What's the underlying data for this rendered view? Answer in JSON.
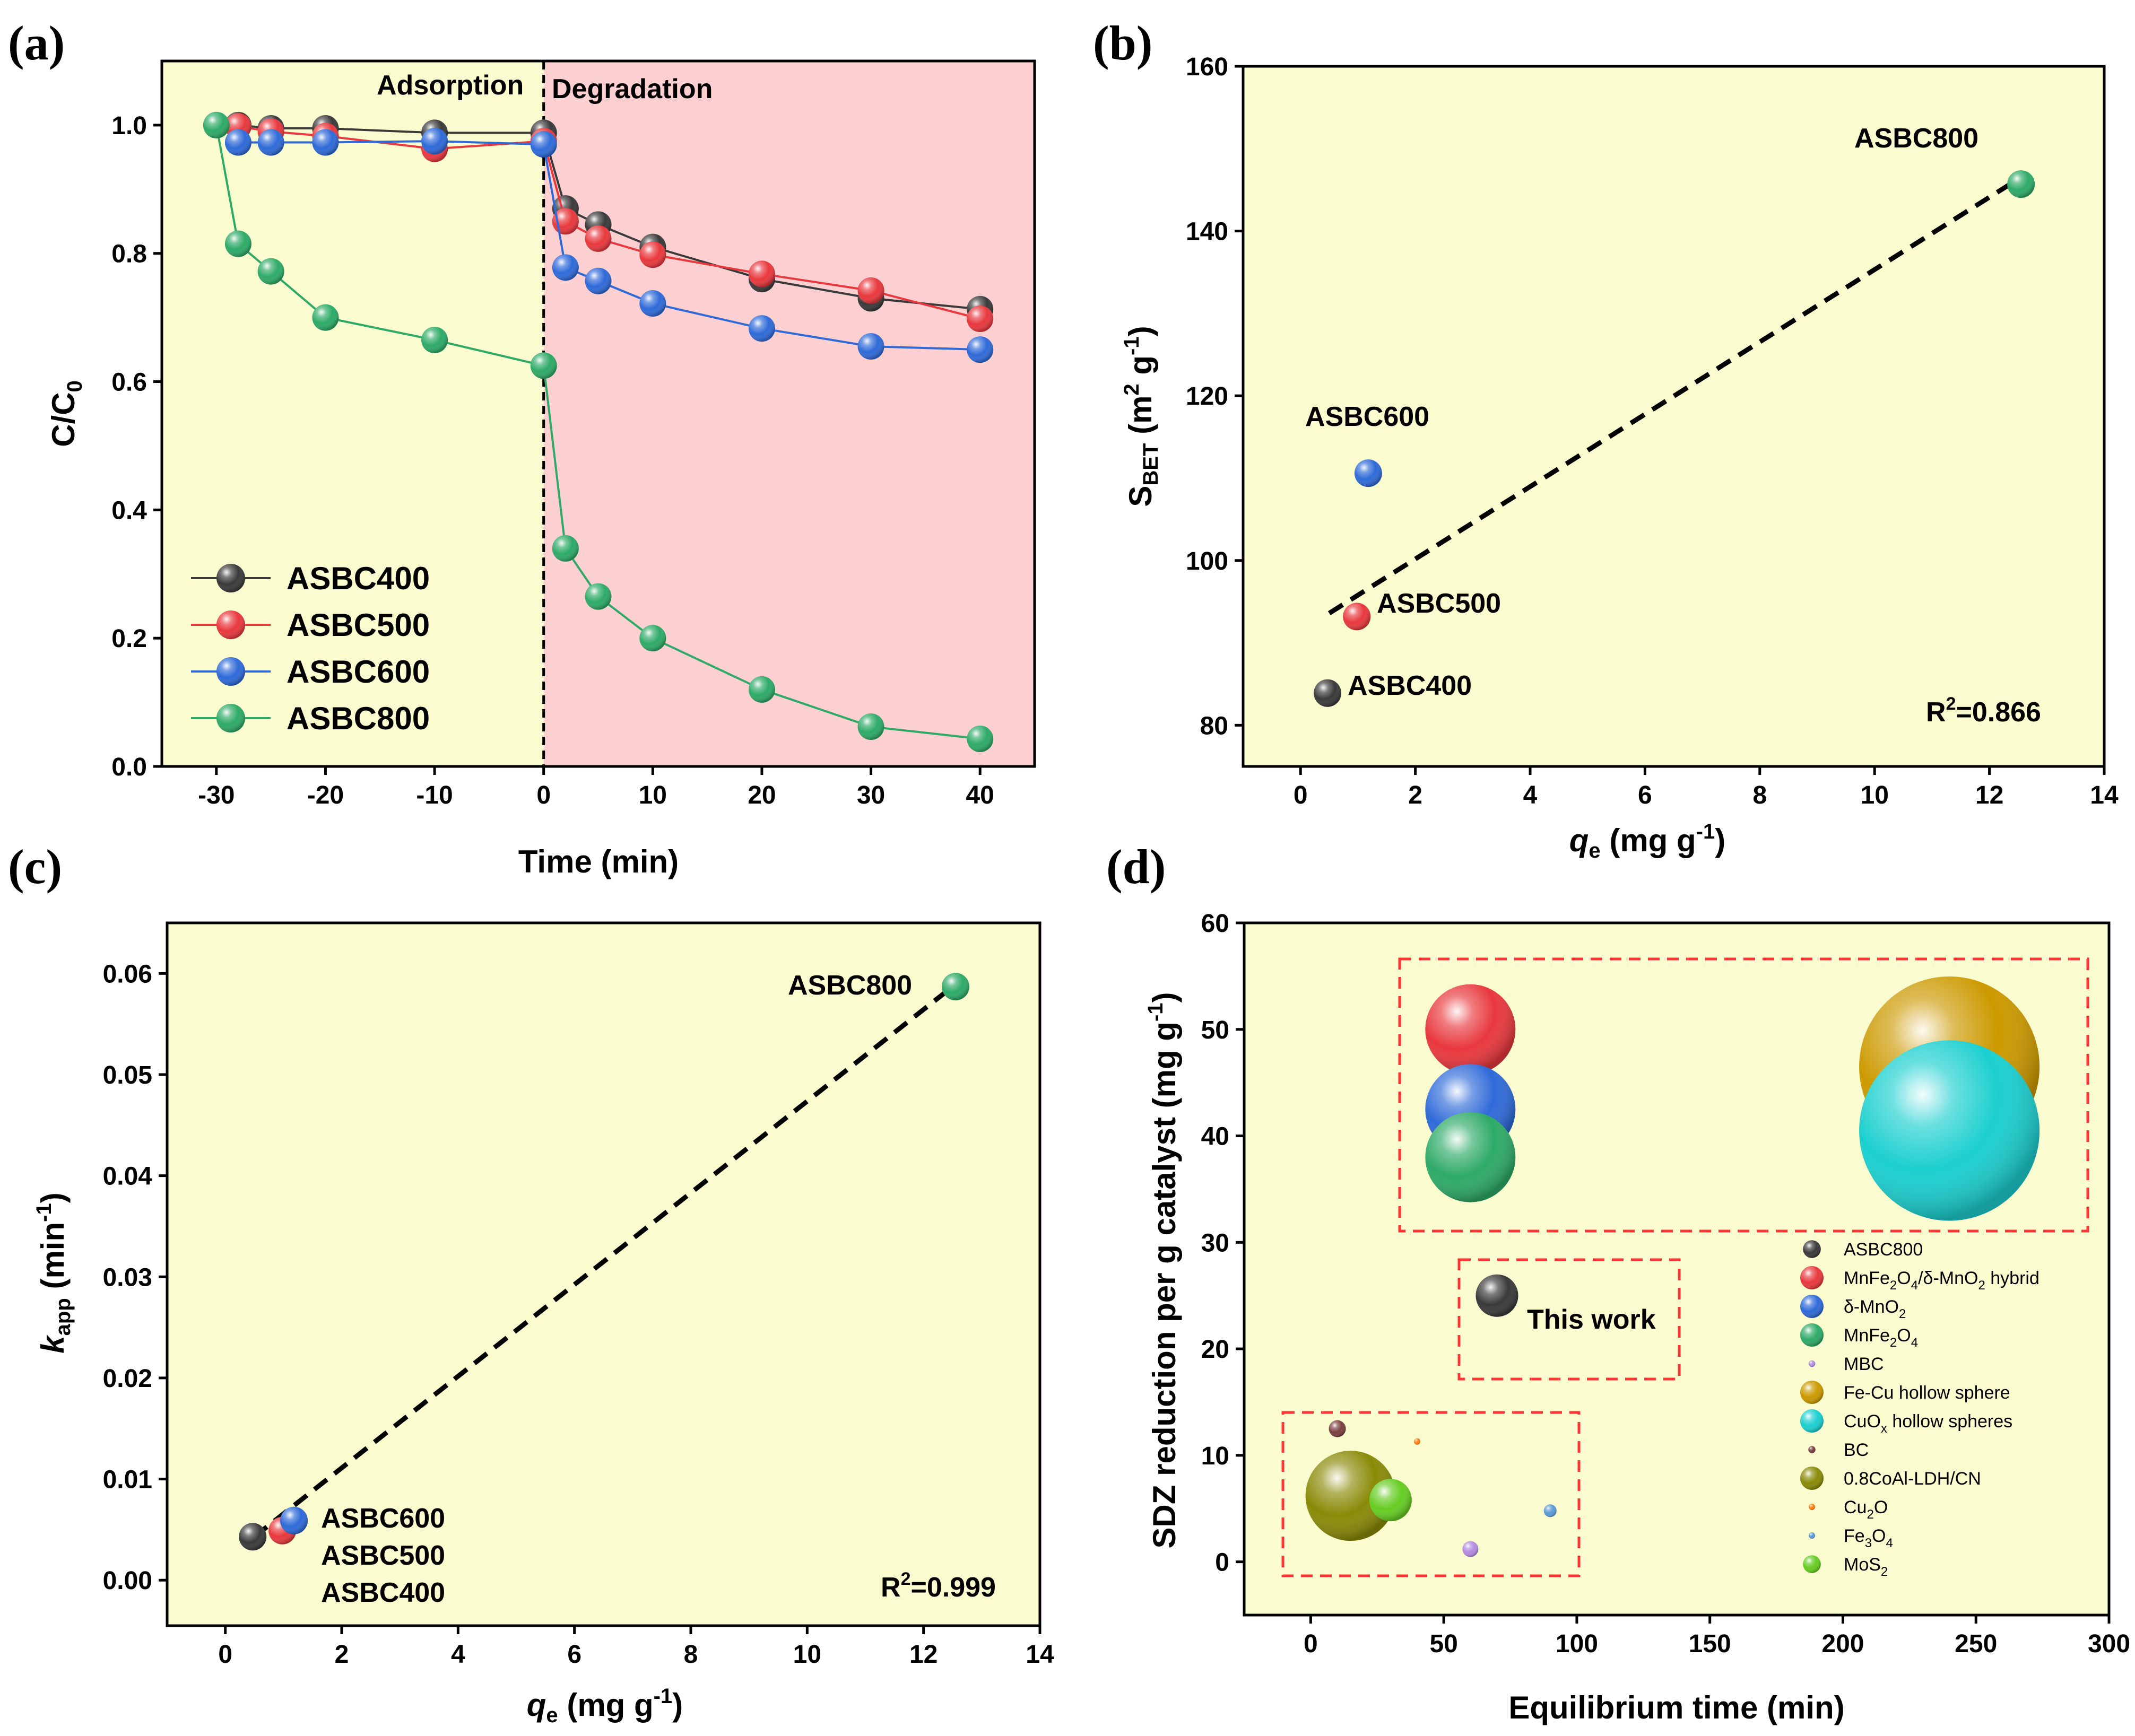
{
  "chart_data": [
    {
      "panel": "(a)",
      "type": "line",
      "xlabel": "Time (min)",
      "ylabel": "C/C",
      "ylabel_sub": "0",
      "xlim": [
        -35,
        45
      ],
      "ylim": [
        0,
        1.1
      ],
      "xticks": [
        -30,
        -20,
        -10,
        0,
        10,
        20,
        30,
        40
      ],
      "yticks": [
        0.0,
        0.2,
        0.4,
        0.6,
        0.8,
        1.0
      ],
      "xtick_labels": [
        "-30",
        "-20",
        "-10",
        "0",
        "10",
        "20",
        "30",
        "40"
      ],
      "ytick_labels": [
        "0.0",
        "0.2",
        "0.4",
        "0.6",
        "0.8",
        "1.0"
      ],
      "regions": [
        {
          "label": "Adsorption",
          "from": -35,
          "to": 0,
          "color": "#fafbcf"
        },
        {
          "label": "Degradation",
          "from": 0,
          "to": 45,
          "color": "#fccfd0"
        }
      ],
      "legend_position": "bottom-left",
      "series": [
        {
          "name": "ASBC400",
          "color": "#3a3a3a",
          "x": [
            -28,
            -25,
            -20,
            -10,
            0,
            2,
            5,
            10,
            20,
            30,
            40
          ],
          "y": [
            1.0,
            0.995,
            0.995,
            0.988,
            0.988,
            0.87,
            0.845,
            0.81,
            0.76,
            0.73,
            0.713
          ]
        },
        {
          "name": "ASBC500",
          "color": "#e8383d",
          "x": [
            -28,
            -25,
            -20,
            -10,
            0,
            2,
            5,
            10,
            20,
            30,
            40
          ],
          "y": [
            0.998,
            0.99,
            0.983,
            0.963,
            0.975,
            0.85,
            0.823,
            0.798,
            0.768,
            0.742,
            0.698
          ]
        },
        {
          "name": "ASBC600",
          "color": "#2f6ad8",
          "x": [
            -28,
            -25,
            -20,
            -10,
            0,
            2,
            5,
            10,
            20,
            30,
            40
          ],
          "y": [
            0.973,
            0.973,
            0.973,
            0.975,
            0.97,
            0.778,
            0.757,
            0.722,
            0.683,
            0.655,
            0.65
          ]
        },
        {
          "name": "ASBC800",
          "color": "#2eaa67",
          "x": [
            -30,
            -28,
            -25,
            -20,
            -10,
            0,
            2,
            5,
            10,
            20,
            30,
            40
          ],
          "y": [
            1.0,
            0.815,
            0.772,
            0.7,
            0.665,
            0.625,
            0.34,
            0.265,
            0.2,
            0.12,
            0.062,
            0.043
          ]
        }
      ]
    },
    {
      "panel": "(b)",
      "type": "scatter",
      "xlabel_var": "q",
      "xlabel_sub": "e",
      "xlabel_unit": " (mg g",
      "xlabel_sup": "-1",
      "xlabel_close": ")",
      "ylabel": "S",
      "ylabel_sub": "BET",
      "ylabel_unit": " (m",
      "ylabel_sup1": "2",
      "ylabel_mid": " g",
      "ylabel_sup2": "-1",
      "ylabel_close": ")",
      "xlim": [
        -1,
        14
      ],
      "ylim": [
        75,
        160
      ],
      "xticks": [
        0,
        2,
        4,
        6,
        8,
        10,
        12,
        14
      ],
      "yticks": [
        80,
        100,
        120,
        140,
        160
      ],
      "xtick_labels": [
        "0",
        "2",
        "4",
        "6",
        "8",
        "10",
        "12",
        "14"
      ],
      "ytick_labels": [
        "80",
        "100",
        "120",
        "140",
        "160"
      ],
      "points": [
        {
          "name": "ASBC400",
          "x": 0.47,
          "y": 83.9,
          "color": "#3a3a3a"
        },
        {
          "name": "ASBC500",
          "x": 0.98,
          "y": 93.2,
          "color": "#e8383d"
        },
        {
          "name": "ASBC600",
          "x": 1.18,
          "y": 110.6,
          "color": "#2f6ad8"
        },
        {
          "name": "ASBC800",
          "x": 12.55,
          "y": 145.7,
          "color": "#2eaa67"
        }
      ],
      "fit_line": {
        "x": [
          0.5,
          12.5
        ],
        "y": [
          93.6,
          146.3
        ]
      },
      "r2_label": "R",
      "r2_sup": "2",
      "r2_value": "=0.866"
    },
    {
      "panel": "(c)",
      "type": "scatter",
      "xlabel_var": "q",
      "xlabel_sub": "e",
      "xlabel_unit": " (mg g",
      "xlabel_sup": "-1",
      "xlabel_close": ")",
      "ylabel_var": "k",
      "ylabel_sub": "app",
      "ylabel_unit": " (min",
      "ylabel_sup": "-1",
      "ylabel_close": ")",
      "xlim": [
        -1,
        14
      ],
      "ylim": [
        -0.0045,
        0.065
      ],
      "xticks": [
        0,
        2,
        4,
        6,
        8,
        10,
        12,
        14
      ],
      "yticks": [
        0.0,
        0.01,
        0.02,
        0.03,
        0.04,
        0.05,
        0.06
      ],
      "xtick_labels": [
        "0",
        "2",
        "4",
        "6",
        "8",
        "10",
        "12",
        "14"
      ],
      "ytick_labels": [
        "0.00",
        "0.01",
        "0.02",
        "0.03",
        "0.04",
        "0.05",
        "0.06"
      ],
      "points": [
        {
          "name": "ASBC400",
          "x": 0.47,
          "y": 0.0043,
          "color": "#3a3a3a"
        },
        {
          "name": "ASBC500",
          "x": 0.98,
          "y": 0.0049,
          "color": "#e8383d"
        },
        {
          "name": "ASBC600",
          "x": 1.18,
          "y": 0.0059,
          "color": "#2f6ad8"
        },
        {
          "name": "ASBC800",
          "x": 12.55,
          "y": 0.0587,
          "color": "#2eaa67"
        }
      ],
      "fit_line": {
        "x": [
          0.5,
          12.5
        ],
        "y": [
          0.0043,
          0.0587
        ]
      },
      "r2_label": "R",
      "r2_sup": "2",
      "r2_value": "=0.999"
    },
    {
      "panel": "(d)",
      "type": "scatter",
      "subtype": "bubble",
      "xlabel": "Equilibrium time (min)",
      "ylabel": "SDZ reduction per g catalyst (mg g",
      "ylabel_sup": "-1",
      "ylabel_close": ")",
      "xlim": [
        -25,
        300
      ],
      "ylim": [
        -5,
        60
      ],
      "xticks": [
        0,
        50,
        100,
        150,
        200,
        250,
        300
      ],
      "yticks": [
        0,
        10,
        20,
        30,
        40,
        50,
        60
      ],
      "xtick_labels": [
        "0",
        "50",
        "100",
        "150",
        "200",
        "250",
        "300"
      ],
      "ytick_labels": [
        "0",
        "10",
        "20",
        "30",
        "40",
        "50",
        "60"
      ],
      "annotation": "This work",
      "legend_position": "right",
      "points": [
        {
          "name": "ASBC800",
          "x": 70,
          "y": 25,
          "size": 4.0,
          "color": "#3a3a3a"
        },
        {
          "name": "MnFe2O4/δ-MnO2 hybrid",
          "x": 60,
          "y": 50,
          "size": 8.5,
          "color": "#e8383d"
        },
        {
          "name": "δ-MnO2",
          "x": 60,
          "y": 42.5,
          "size": 8.5,
          "color": "#2f6ad8"
        },
        {
          "name": "MnFe2O4",
          "x": 60,
          "y": 38,
          "size": 8.5,
          "color": "#2eaa67"
        },
        {
          "name": "MBC",
          "x": 60,
          "y": 1.2,
          "size": 1.5,
          "color": "#b38be0"
        },
        {
          "name": "Fe-Cu hollow sphere",
          "x": 240,
          "y": 46.5,
          "size": 17.0,
          "color": "#cc9900"
        },
        {
          "name": "CuOx hollow spheres",
          "x": 240,
          "y": 40.5,
          "size": 17.0,
          "color": "#1ccfcf"
        },
        {
          "name": "BC",
          "x": 10,
          "y": 12.5,
          "size": 1.6,
          "color": "#7a4040"
        },
        {
          "name": "0.8CoAl-LDH/CN",
          "x": 15,
          "y": 6.2,
          "size": 8.5,
          "color": "#8a8a08"
        },
        {
          "name": "Cu2O",
          "x": 40,
          "y": 11.3,
          "size": 0.6,
          "color": "#ff7f0e"
        },
        {
          "name": "Fe3O4",
          "x": 90,
          "y": 4.8,
          "size": 1.2,
          "color": "#5a9ad6"
        },
        {
          "name": "MoS2",
          "x": 30,
          "y": 5.8,
          "size": 4.0,
          "color": "#66cc22"
        }
      ],
      "legend_items": [
        {
          "pre": "ASBC800",
          "sub1": "",
          "mid": "",
          "sub2": "",
          "post": ""
        },
        {
          "pre": "MnFe",
          "sub1": "2",
          "mid": "O",
          "sub2": "4",
          "post": "/δ-MnO",
          "sub3": "2",
          "post2": " hybrid"
        },
        {
          "pre": "δ-MnO",
          "sub1": "2",
          "mid": "",
          "sub2": "",
          "post": ""
        },
        {
          "pre": "MnFe",
          "sub1": "2",
          "mid": "O",
          "sub2": "4",
          "post": ""
        },
        {
          "pre": "MBC",
          "sub1": "",
          "mid": "",
          "sub2": "",
          "post": ""
        },
        {
          "pre": "Fe-Cu hollow sphere",
          "sub1": "",
          "mid": "",
          "sub2": "",
          "post": ""
        },
        {
          "pre": "CuO",
          "sub1": "x",
          "mid": " hollow spheres",
          "sub2": "",
          "post": ""
        },
        {
          "pre": "BC",
          "sub1": "",
          "mid": "",
          "sub2": "",
          "post": ""
        },
        {
          "pre": "0.8CoAl-LDH/CN",
          "sub1": "",
          "mid": "",
          "sub2": "",
          "post": ""
        },
        {
          "pre": "Cu",
          "sub1": "2",
          "mid": "O",
          "sub2": "",
          "post": ""
        },
        {
          "pre": "Fe",
          "sub1": "3",
          "mid": "O",
          "sub2": "4",
          "post": ""
        },
        {
          "pre": "MoS",
          "sub1": "2",
          "mid": "",
          "sub2": "",
          "post": ""
        }
      ]
    }
  ],
  "colors": {
    "yellow_bg": "#fafbcf",
    "pink_bg": "#fccfd0",
    "dash_red": "#ff3333"
  }
}
